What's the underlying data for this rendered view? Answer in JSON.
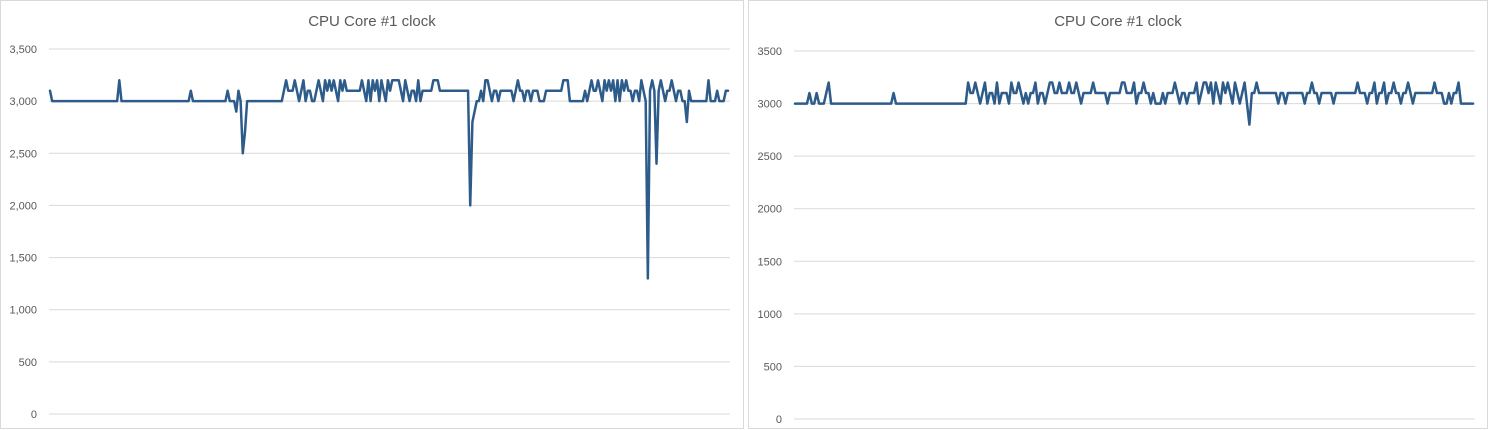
{
  "colors": {
    "series": "#2e5c8a",
    "grid": "#d9d9d9",
    "text": "#595959"
  },
  "chart_data": [
    {
      "type": "line",
      "title": "CPU Core #1 clock",
      "ylim": [
        0,
        3500
      ],
      "yticks": [
        0,
        500,
        1000,
        1500,
        2000,
        2500,
        3000,
        3500
      ],
      "ytick_labels": [
        "0",
        "500",
        "1,000",
        "1,500",
        "2,000",
        "2,500",
        "3,000",
        "3,500"
      ],
      "grid": true,
      "legend": "none",
      "series": [
        {
          "values": [
            3100,
            3000,
            3000,
            3000,
            3000,
            3000,
            3000,
            3000,
            3000,
            3000,
            3000,
            3000,
            3000,
            3000,
            3000,
            3000,
            3000,
            3000,
            3000,
            3000,
            3000,
            3000,
            3000,
            3000,
            3000,
            3000,
            3000,
            3000,
            3000,
            3000,
            3000,
            3000,
            3200,
            3000,
            3000,
            3000,
            3000,
            3000,
            3000,
            3000,
            3000,
            3000,
            3000,
            3000,
            3000,
            3000,
            3000,
            3000,
            3000,
            3000,
            3000,
            3000,
            3000,
            3000,
            3000,
            3000,
            3000,
            3000,
            3000,
            3000,
            3000,
            3000,
            3000,
            3000,
            3000,
            3100,
            3000,
            3000,
            3000,
            3000,
            3000,
            3000,
            3000,
            3000,
            3000,
            3000,
            3000,
            3000,
            3000,
            3000,
            3000,
            3000,
            3100,
            3000,
            3000,
            3000,
            2900,
            3100,
            3000,
            2500,
            2700,
            3000,
            3000,
            3000,
            3000,
            3000,
            3000,
            3000,
            3000,
            3000,
            3000,
            3000,
            3000,
            3000,
            3000,
            3000,
            3000,
            3000,
            3100,
            3200,
            3100,
            3100,
            3100,
            3200,
            3100,
            3000,
            3100,
            3200,
            3000,
            3100,
            3100,
            3000,
            3000,
            3100,
            3200,
            3100,
            3000,
            3200,
            3100,
            3200,
            3100,
            3200,
            3100,
            3000,
            3200,
            3100,
            3200,
            3100,
            3100,
            3100,
            3100,
            3100,
            3100,
            3100,
            3200,
            3100,
            3000,
            3200,
            3000,
            3200,
            3100,
            3200,
            3000,
            3200,
            3100,
            3000,
            3200,
            3100,
            3200,
            3200,
            3200,
            3200,
            3100,
            3000,
            3200,
            3100,
            3000,
            3100,
            3100,
            3000,
            3200,
            3000,
            3100,
            3100,
            3100,
            3100,
            3100,
            3200,
            3200,
            3200,
            3100,
            3100,
            3100,
            3100,
            3100,
            3100,
            3100,
            3100,
            3100,
            3100,
            3100,
            3100,
            3100,
            3100,
            2000,
            2800,
            2900,
            3000,
            3000,
            3100,
            3000,
            3200,
            3200,
            3100,
            3000,
            3100,
            3100,
            3000,
            3100,
            3100,
            3100,
            3100,
            3100,
            3100,
            3000,
            3100,
            3200,
            3100,
            3100,
            3000,
            3100,
            3100,
            3000,
            3100,
            3100,
            3100,
            3000,
            3000,
            3000,
            3100,
            3100,
            3100,
            3100,
            3100,
            3100,
            3100,
            3100,
            3200,
            3200,
            3200,
            3000,
            3000,
            3000,
            3000,
            3000,
            3000,
            3000,
            3100,
            3000,
            3100,
            3200,
            3100,
            3100,
            3200,
            3100,
            3000,
            3200,
            3100,
            3200,
            3100,
            3200,
            3000,
            3200,
            3000,
            3200,
            3100,
            3200,
            3100,
            3100,
            3000,
            3100,
            3100,
            3000,
            3200,
            3100,
            3000,
            1300,
            3100,
            3200,
            3100,
            2400,
            3100,
            3200,
            3100,
            3000,
            3100,
            3100,
            3200,
            3100,
            3000,
            3100,
            3100,
            3000,
            3000,
            2800,
            3100,
            3000,
            3000,
            3000,
            3000,
            3000,
            3000,
            3000,
            3000,
            3200,
            3000,
            3000,
            3000,
            3100,
            3000,
            3000,
            3000,
            3100,
            3100
          ]
        }
      ]
    },
    {
      "type": "line",
      "title": "CPU Core #1 clock",
      "ylim": [
        0,
        3500
      ],
      "yticks": [
        0,
        500,
        1000,
        1500,
        2000,
        2500,
        3000,
        3500
      ],
      "ytick_labels": [
        "0",
        "500",
        "1000",
        "1500",
        "2000",
        "2500",
        "3000",
        "3500"
      ],
      "grid": true,
      "legend": "none",
      "series": [
        {
          "values": [
            3000,
            3000,
            3000,
            3000,
            3000,
            3000,
            3100,
            3000,
            3000,
            3100,
            3000,
            3000,
            3000,
            3100,
            3200,
            3000,
            3000,
            3000,
            3000,
            3000,
            3000,
            3000,
            3000,
            3000,
            3000,
            3000,
            3000,
            3000,
            3000,
            3000,
            3000,
            3000,
            3000,
            3000,
            3000,
            3000,
            3000,
            3000,
            3000,
            3000,
            3000,
            3100,
            3000,
            3000,
            3000,
            3000,
            3000,
            3000,
            3000,
            3000,
            3000,
            3000,
            3000,
            3000,
            3000,
            3000,
            3000,
            3000,
            3000,
            3000,
            3000,
            3000,
            3000,
            3000,
            3000,
            3000,
            3000,
            3000,
            3000,
            3000,
            3000,
            3000,
            3200,
            3100,
            3100,
            3200,
            3100,
            3000,
            3100,
            3200,
            3000,
            3100,
            3100,
            3000,
            3200,
            3000,
            3100,
            3100,
            3100,
            3000,
            3200,
            3100,
            3100,
            3200,
            3100,
            3000,
            3100,
            3000,
            3100,
            3100,
            3200,
            3000,
            3100,
            3100,
            3000,
            3100,
            3200,
            3200,
            3100,
            3100,
            3200,
            3100,
            3100,
            3100,
            3200,
            3100,
            3100,
            3200,
            3100,
            3000,
            3100,
            3100,
            3100,
            3100,
            3200,
            3100,
            3100,
            3100,
            3100,
            3100,
            3000,
            3100,
            3100,
            3100,
            3100,
            3100,
            3200,
            3200,
            3100,
            3100,
            3100,
            3200,
            3000,
            3100,
            3100,
            3200,
            3100,
            3100,
            3000,
            3100,
            3000,
            3000,
            3000,
            3100,
            3000,
            3100,
            3100,
            3100,
            3200,
            3100,
            3000,
            3100,
            3100,
            3000,
            3100,
            3100,
            3100,
            3200,
            3000,
            3100,
            3200,
            3200,
            3100,
            3200,
            3000,
            3200,
            3100,
            3000,
            3200,
            3100,
            3200,
            3100,
            3000,
            3200,
            3100,
            3000,
            3100,
            3200,
            3000,
            2800,
            3100,
            3100,
            3200,
            3100,
            3100,
            3100,
            3100,
            3100,
            3100,
            3100,
            3100,
            3000,
            3100,
            3100,
            3000,
            3100,
            3100,
            3100,
            3100,
            3100,
            3100,
            3100,
            3000,
            3100,
            3100,
            3200,
            3100,
            3100,
            3000,
            3100,
            3100,
            3100,
            3100,
            3100,
            3000,
            3100,
            3100,
            3100,
            3100,
            3100,
            3100,
            3100,
            3100,
            3100,
            3200,
            3100,
            3100,
            3100,
            3000,
            3100,
            3100,
            3200,
            3000,
            3100,
            3100,
            3200,
            3000,
            3100,
            3100,
            3200,
            3100,
            3100,
            3000,
            3100,
            3100,
            3200,
            3100,
            3000,
            3100,
            3100,
            3100,
            3100,
            3100,
            3100,
            3100,
            3100,
            3200,
            3100,
            3100,
            3100,
            3000,
            3000,
            3100,
            3000,
            3100,
            3100,
            3200,
            3000,
            3000,
            3000,
            3000,
            3000,
            3000
          ]
        }
      ]
    }
  ]
}
